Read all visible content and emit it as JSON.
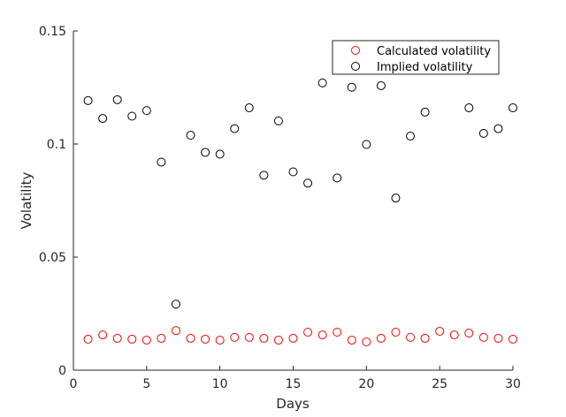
{
  "chart_data": {
    "type": "scatter",
    "xlabel": "Days",
    "ylabel": "Volatility",
    "xlim": [
      0,
      30
    ],
    "ylim": [
      0,
      0.15
    ],
    "xticks": [
      0,
      5,
      10,
      15,
      20,
      25,
      30
    ],
    "yticks": [
      0,
      0.05,
      0.1,
      0.15
    ],
    "xtick_labels": [
      "0",
      "5",
      "10",
      "15",
      "20",
      "25",
      "30"
    ],
    "ytick_labels": [
      "0",
      "0.05",
      "0.1",
      "0.15"
    ],
    "grid": false,
    "legend_position": "top-right",
    "x": [
      1,
      2,
      3,
      4,
      5,
      6,
      7,
      8,
      9,
      10,
      11,
      12,
      13,
      14,
      15,
      16,
      17,
      18,
      19,
      20,
      21,
      22,
      23,
      24,
      25,
      26,
      27,
      28,
      29,
      30
    ],
    "series": [
      {
        "name": "Calculated volatility",
        "color": "#ff0000",
        "marker": "circle-open",
        "values": [
          0.0137,
          0.0156,
          0.0141,
          0.0137,
          0.0133,
          0.0141,
          0.0175,
          0.0141,
          0.0137,
          0.0133,
          0.0145,
          0.0145,
          0.0141,
          0.0133,
          0.0141,
          0.0168,
          0.0156,
          0.0168,
          0.0133,
          0.0125,
          0.0141,
          0.0168,
          0.0145,
          0.0141,
          0.0172,
          0.0156,
          0.0164,
          0.0145,
          0.0141,
          0.0137
        ]
      },
      {
        "name": "Implied volatility",
        "color": "#000000",
        "marker": "circle-open",
        "values": [
          0.1192,
          0.1113,
          0.1196,
          0.1123,
          0.1148,
          0.092,
          0.0292,
          0.1039,
          0.0963,
          0.0955,
          0.1068,
          0.116,
          0.0862,
          0.1102,
          0.0877,
          0.0827,
          0.127,
          0.085,
          0.1251,
          0.0998,
          0.1258,
          0.0761,
          0.1035,
          0.1141,
          null,
          null,
          0.116,
          0.1047,
          0.1068,
          0.116
        ]
      }
    ]
  }
}
